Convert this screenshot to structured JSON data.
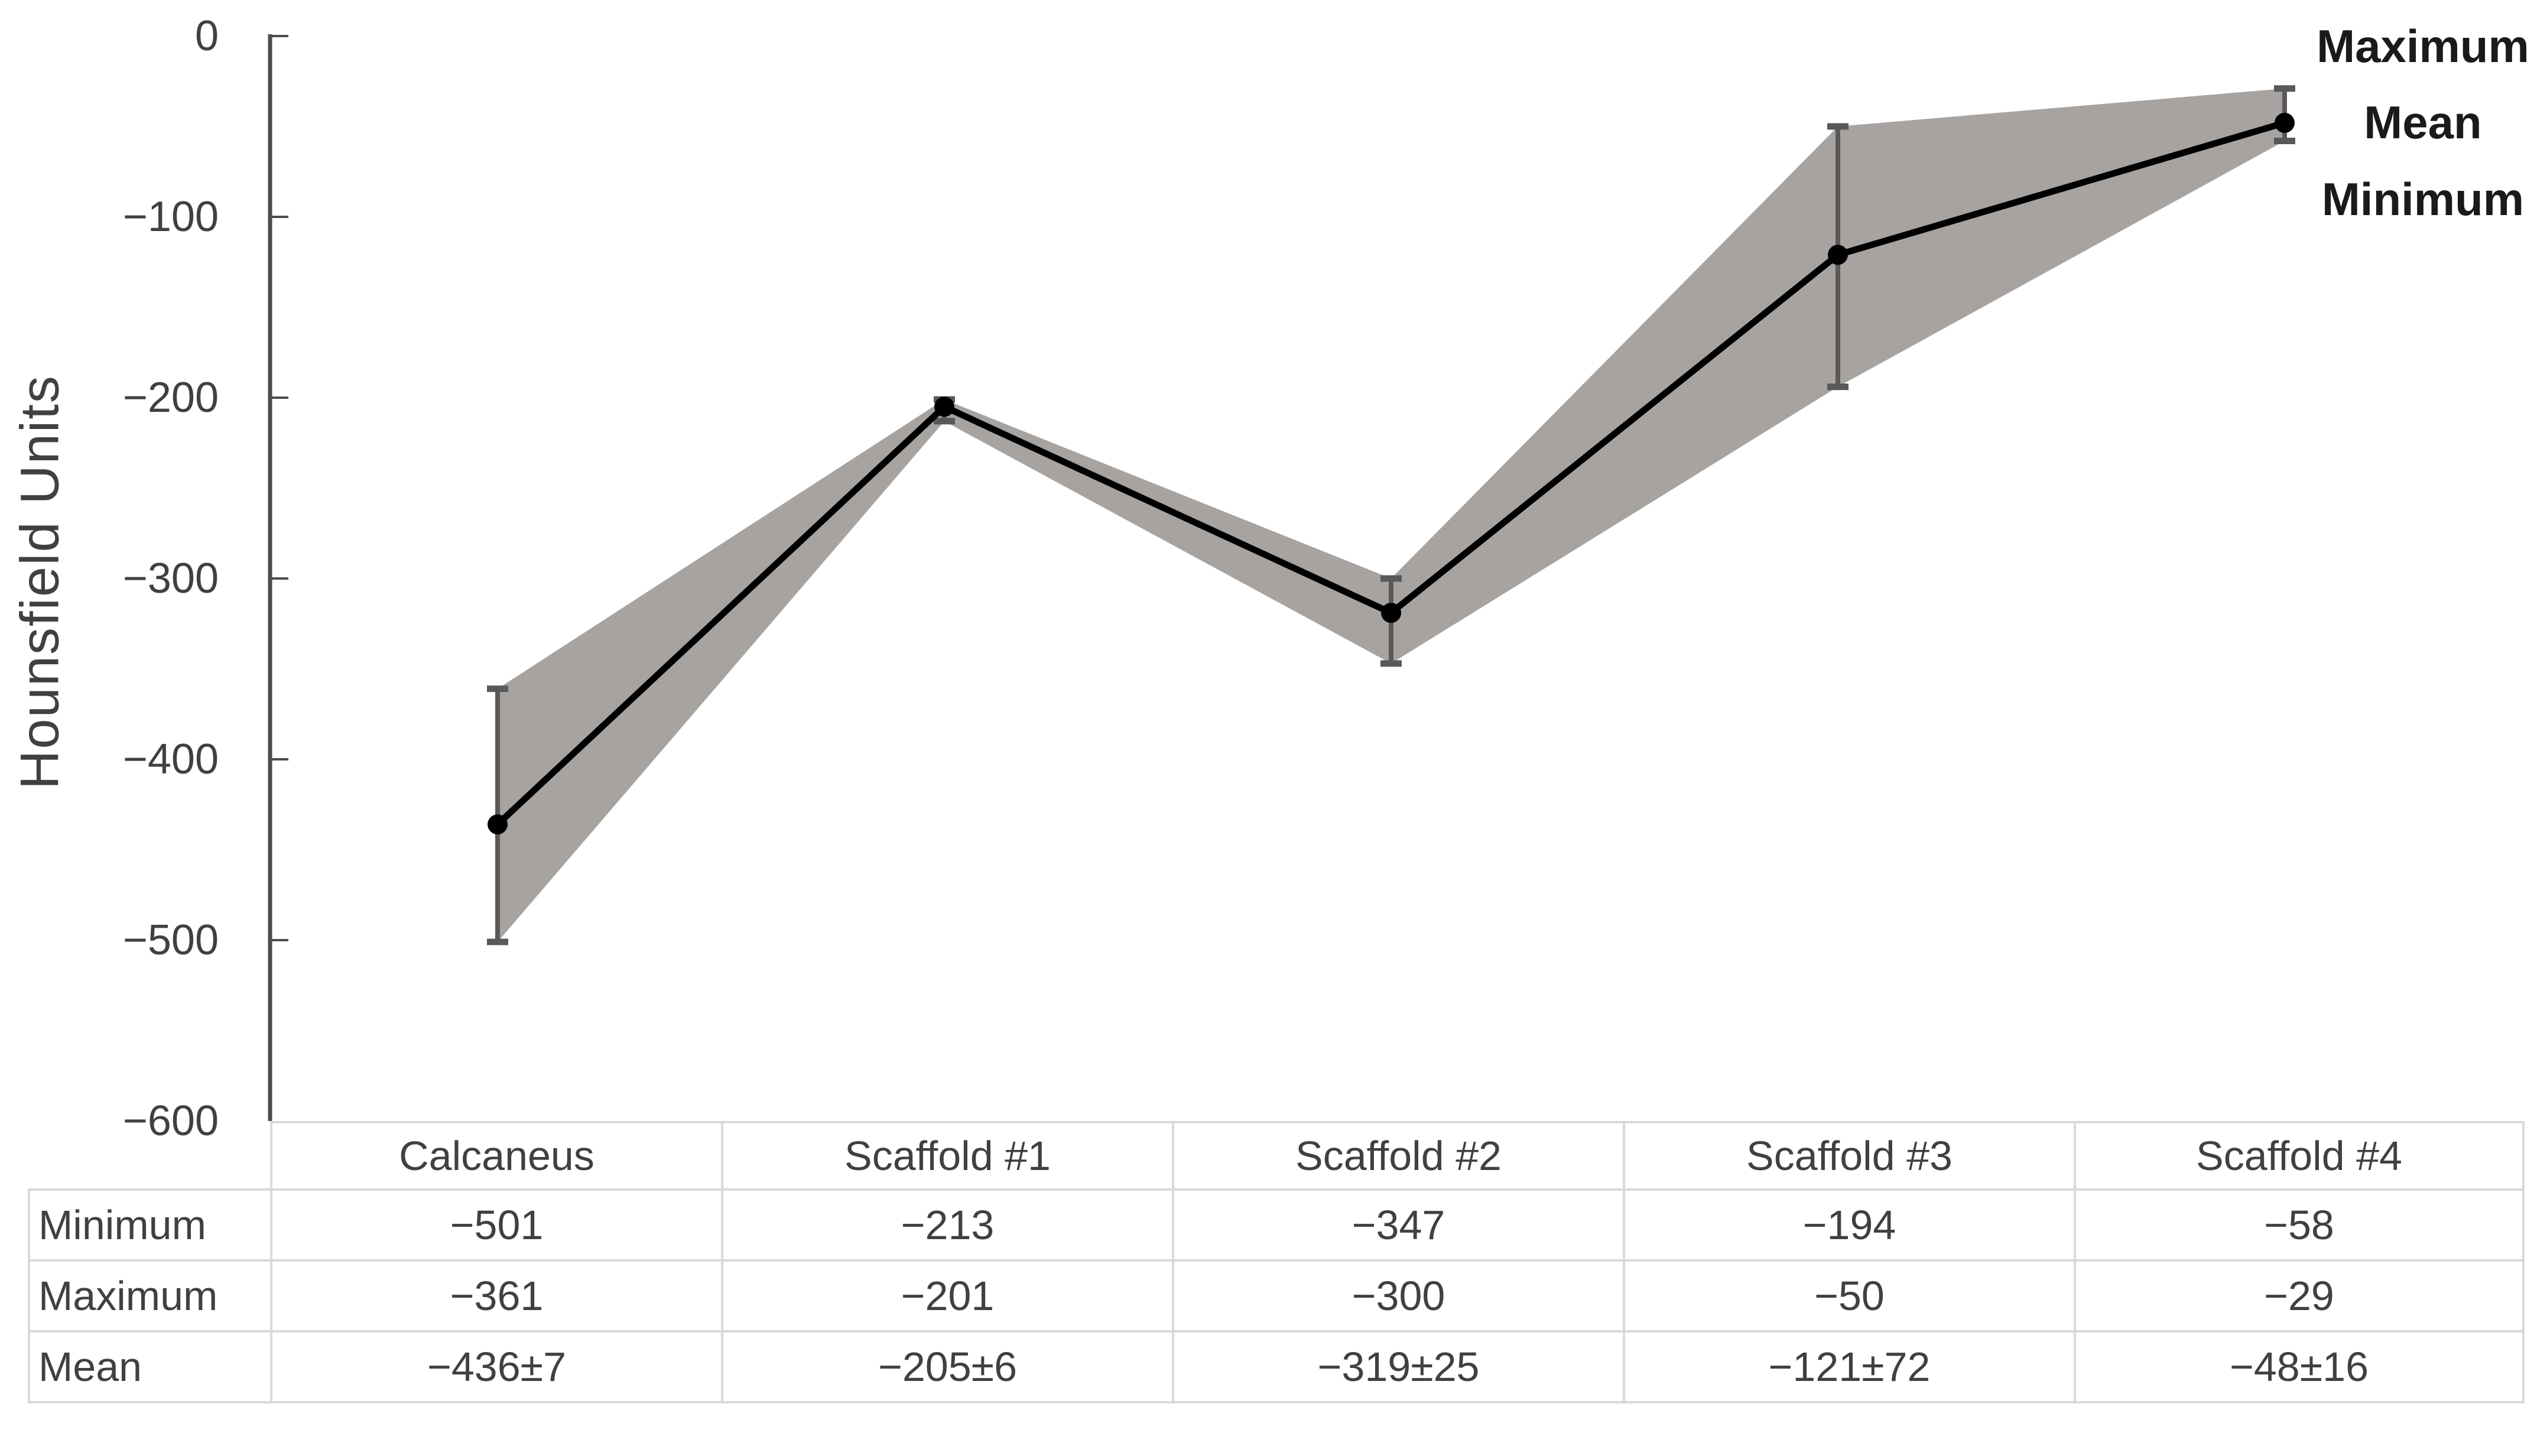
{
  "chart_data": {
    "type": "line",
    "title": "",
    "ylabel": "Hounsfield Units",
    "xlabel": "",
    "categories": [
      "Calcaneus",
      "Scaffold #1",
      "Scaffold #2",
      "Scaffold #3",
      "Scaffold #4"
    ],
    "series": [
      {
        "name": "Mean",
        "values": [
          -436,
          -205,
          -319,
          -121,
          -48
        ],
        "style": "line-with-markers"
      },
      {
        "name": "Minimum",
        "values": [
          -501,
          -213,
          -347,
          -194,
          -58
        ],
        "style": "band-lower-edge"
      },
      {
        "name": "Maximum",
        "values": [
          -361,
          -201,
          -300,
          -50,
          -29
        ],
        "style": "band-upper-edge"
      }
    ],
    "mean_sd": [
      7,
      6,
      25,
      72,
      16
    ],
    "annotations": [
      "Maximum",
      "Mean",
      "Minimum"
    ],
    "ylim": [
      -600,
      0
    ],
    "yticks": [
      0,
      -100,
      -200,
      -300,
      -400,
      -500,
      -600
    ],
    "ytick_labels": [
      "0",
      "−100",
      "−200",
      "−300",
      "−400",
      "−500",
      "−600"
    ],
    "grid": false,
    "legend_position": "right-annotations",
    "band": "min-max",
    "error_bars": "min-max"
  },
  "table": {
    "columns": [
      "Calcaneus",
      "Scaffold #1",
      "Scaffold #2",
      "Scaffold #3",
      "Scaffold #4"
    ],
    "rows": [
      {
        "label": "Minimum",
        "values": [
          "−501",
          "−213",
          "−347",
          "−194",
          "−58"
        ]
      },
      {
        "label": "Maximum",
        "values": [
          "−361",
          "−201",
          "−300",
          "−50",
          "−29"
        ]
      },
      {
        "label": "Mean",
        "values": [
          "−436±7",
          "−205±6",
          "−319±25",
          "−121±72",
          "−48±16"
        ]
      }
    ]
  },
  "colors": {
    "band": "#a7a3a0",
    "mean_line": "#000000",
    "marker": "#000000",
    "error_bar": "#595959",
    "axis": "#4d4d4d",
    "tick_text": "#404040",
    "table_text": "#404040",
    "table_border": "#d9d9d9",
    "annotation_text": "#1a1a1a",
    "background": "#ffffff"
  }
}
